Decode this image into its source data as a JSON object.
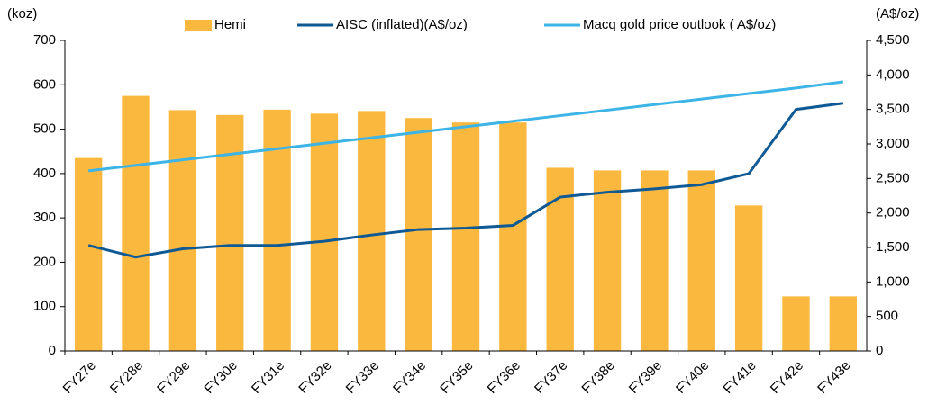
{
  "chart_data": {
    "type": "bar",
    "y_label": "(koz)",
    "y2_label": "(A$/oz)",
    "categories": [
      "FY27e",
      "FY28e",
      "FY29e",
      "FY30e",
      "FY31e",
      "FY32e",
      "FY33e",
      "FY34e",
      "FY35e",
      "FY36e",
      "FY37e",
      "FY38e",
      "FY39e",
      "FY40e",
      "FY41e",
      "FY42e",
      "FY43e"
    ],
    "series": [
      {
        "name": "Hemi",
        "type": "bar",
        "color": "#fbb83f",
        "values": [
          435,
          575,
          543,
          532,
          544,
          535,
          541,
          525,
          515,
          515,
          413,
          407,
          407,
          407,
          328,
          123,
          123
        ]
      },
      {
        "name": "AISC (inflated)(A$/oz)",
        "type": "line",
        "axis": "y2",
        "color": "#0f5a95",
        "values": [
          1530,
          1360,
          1480,
          1530,
          1530,
          1590,
          1680,
          1760,
          1780,
          1820,
          2230,
          2300,
          2350,
          2410,
          2570,
          3500,
          3590
        ]
      },
      {
        "name": "Macq gold price outlook ( A$/oz)",
        "type": "line",
        "axis": "y2",
        "color": "#3cb4e5",
        "values": [
          2610,
          2690,
          2770,
          2850,
          2930,
          3010,
          3090,
          3170,
          3250,
          3330,
          3410,
          3490,
          3570,
          3650,
          3730,
          3810,
          3900
        ]
      }
    ],
    "ylim": [
      0,
      700
    ],
    "yticks": [
      0,
      100,
      200,
      300,
      400,
      500,
      600,
      700
    ],
    "y2lim": [
      0,
      4500
    ],
    "y2ticks": [
      0,
      500,
      {
        "value": 1000,
        "label": "1,000"
      },
      {
        "value": 1500,
        "label": "1,500"
      },
      {
        "value": 2000,
        "label": "2,000"
      },
      {
        "value": 2500,
        "label": "2,500"
      },
      {
        "value": 3000,
        "label": "3,000"
      },
      {
        "value": 3500,
        "label": "3,500"
      },
      {
        "value": 4000,
        "label": "4,000"
      },
      {
        "value": 4500,
        "label": "4,500"
      }
    ],
    "legend": "top",
    "grid": false
  }
}
